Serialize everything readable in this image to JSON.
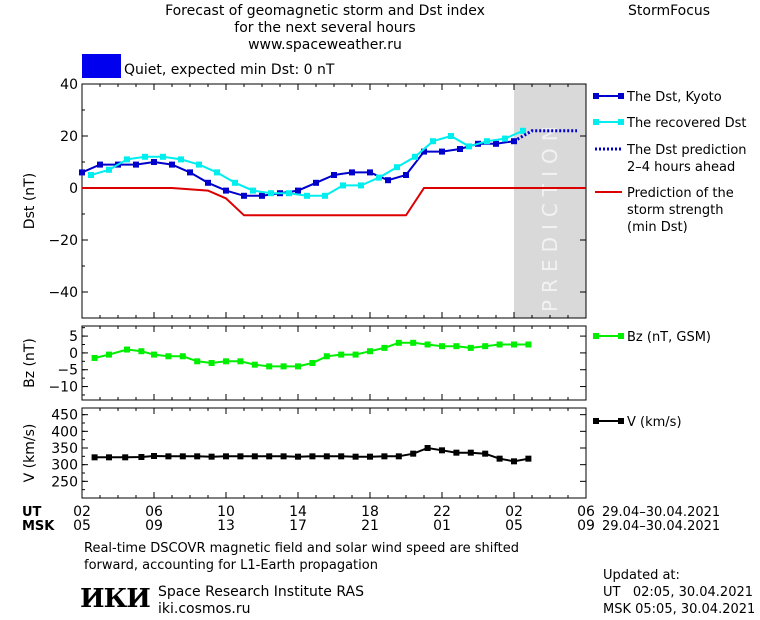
{
  "header": {
    "title_line1": "Forecast of geomagnetic storm and Dst index",
    "title_line2": "for the next several hours",
    "url": "www.spaceweather.ru",
    "brand": "StormFocus",
    "status_text": "Quiet, expected min Dst: 0 nT",
    "status_color": "#0000ee"
  },
  "chart_data": [
    {
      "type": "line",
      "id": "dst",
      "ylabel": "Dst (nT)",
      "ylim": [
        -50,
        40
      ],
      "yticks": [
        40,
        20,
        0,
        -20,
        -40
      ],
      "xlim": [
        2,
        30
      ],
      "prediction_band": [
        26,
        30
      ],
      "prediction_label": "PREDICTION",
      "series": [
        {
          "name": "The Dst, Kyoto",
          "color": "#0000cc",
          "x": [
            2,
            3,
            4,
            5,
            6,
            7,
            8,
            9,
            10,
            11,
            12,
            13,
            14,
            15,
            16,
            17,
            18,
            19,
            20,
            21,
            22,
            23,
            24,
            25,
            26
          ],
          "y": [
            6,
            9,
            9,
            9,
            10,
            9,
            6,
            2,
            -1,
            -3,
            -3,
            -2,
            -1,
            2,
            5,
            6,
            6,
            3,
            5,
            14,
            14,
            15,
            17,
            17,
            18
          ]
        },
        {
          "name": "The recovered Dst",
          "color": "#00eeee",
          "x": [
            2.5,
            3.5,
            4.5,
            5.5,
            6.5,
            7.5,
            8.5,
            9.5,
            10.5,
            11.5,
            12.5,
            13.5,
            14.5,
            15.5,
            16.5,
            17.5,
            18.5,
            19.5,
            20.5,
            21.5,
            22.5,
            23.5,
            24.5,
            25.5,
            26.5
          ],
          "y": [
            5,
            7,
            11,
            12,
            12,
            11,
            9,
            6,
            2,
            -1,
            -2,
            -2,
            -3,
            -3,
            1,
            1,
            4,
            8,
            12,
            18,
            20,
            16,
            18,
            19,
            22
          ]
        },
        {
          "name": "The Dst prediction",
          "name_line2": "2–4 hours ahead",
          "color": "#0000cc",
          "x": [
            26,
            26.5,
            27,
            28,
            29,
            29.5
          ],
          "y": [
            18,
            20,
            22,
            22,
            22,
            22
          ]
        },
        {
          "name": "Prediction of the",
          "name_line2": "storm strength",
          "name_line3": "(min Dst)",
          "color": "#dd0000",
          "x": [
            2,
            7,
            9,
            10,
            11,
            19.5,
            20,
            21,
            30
          ],
          "y": [
            0,
            0,
            -1,
            -4,
            -10.5,
            -10.5,
            -10.5,
            0,
            0
          ]
        }
      ]
    },
    {
      "type": "line",
      "id": "bz",
      "ylabel": "Bz (nT)",
      "ylim": [
        -14,
        8
      ],
      "yticks": [
        5,
        0,
        -5,
        -10
      ],
      "xlim": [
        2,
        30
      ],
      "series": [
        {
          "name": "Bz (nT, GSM)",
          "color": "#00ee00",
          "x": [
            2.7,
            3.5,
            4.5,
            5.3,
            6,
            6.8,
            7.6,
            8.4,
            9.2,
            10,
            10.8,
            11.6,
            12.4,
            13.2,
            14,
            14.8,
            15.6,
            16.4,
            17.2,
            18,
            18.8,
            19.6,
            20.4,
            21.2,
            22,
            22.8,
            23.6,
            24.4,
            25.2,
            26,
            26.8
          ],
          "y": [
            -1.5,
            -0.5,
            1,
            0.5,
            -0.5,
            -1,
            -1,
            -2.5,
            -3,
            -2.5,
            -2.5,
            -3.5,
            -4,
            -4,
            -4,
            -3,
            -1,
            -0.5,
            -0.5,
            0.5,
            1.5,
            3,
            3,
            2.5,
            2,
            2,
            1.5,
            2,
            2.5,
            2.5,
            2.5
          ]
        }
      ]
    },
    {
      "type": "line",
      "id": "v",
      "ylabel": "V (km/s)",
      "ylim": [
        200,
        470
      ],
      "yticks": [
        450,
        400,
        350,
        300,
        250
      ],
      "xlim": [
        2,
        30
      ],
      "series": [
        {
          "name": "V (km/s)",
          "color": "#000000",
          "x": [
            2.7,
            3.5,
            4.4,
            5.3,
            6,
            6.8,
            7.6,
            8.4,
            9.2,
            10,
            10.8,
            11.6,
            12.4,
            13.2,
            14,
            14.8,
            15.6,
            16.4,
            17.2,
            18,
            18.8,
            19.6,
            20.4,
            21.2,
            22,
            22.8,
            23.6,
            24.4,
            25.2,
            26,
            26.8
          ],
          "y": [
            322,
            322,
            322,
            323,
            326,
            325,
            325,
            325,
            324,
            325,
            325,
            325,
            325,
            325,
            324,
            325,
            325,
            325,
            324,
            324,
            325,
            325,
            333,
            350,
            343,
            336,
            336,
            333,
            318,
            310,
            318
          ]
        }
      ]
    }
  ],
  "time_axis": {
    "ut_label": "UT",
    "msk_label": "MSK",
    "ut_ticks": [
      "02",
      "06",
      "10",
      "14",
      "18",
      "22",
      "02",
      "06"
    ],
    "msk_ticks": [
      "05",
      "09",
      "13",
      "17",
      "21",
      "01",
      "05",
      "09"
    ],
    "ut_date_range": "29.04–30.04.2021",
    "msk_date_range": "29.04–30.04.2021"
  },
  "footer": {
    "note_line1": "Real-time DSCOVR magnetic field and solar wind speed are shifted",
    "note_line2": "forward, accounting for L1-Earth propagation",
    "logo_text": "ИКИ",
    "institute": "Space Research Institute RAS",
    "site": "iki.cosmos.ru",
    "updated_label": "Updated at:",
    "updated_ut": "UT   02:05, 30.04.2021",
    "updated_msk": "MSK 05:05, 30.04.2021"
  }
}
